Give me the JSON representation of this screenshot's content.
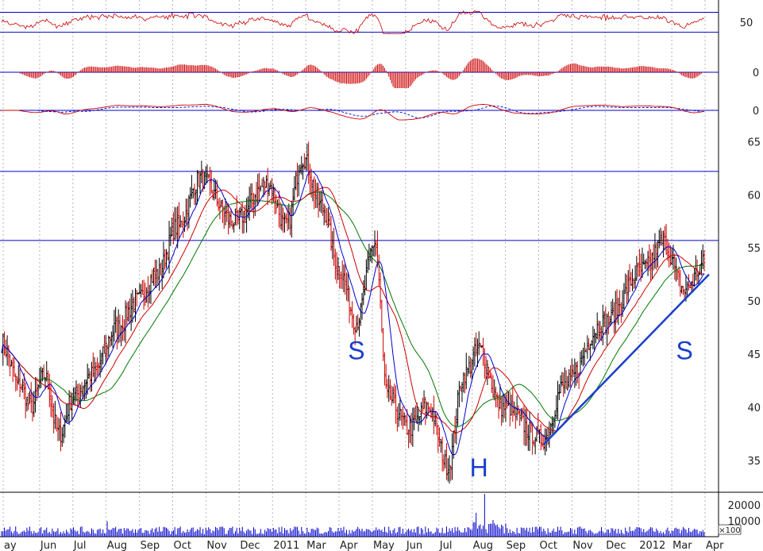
{
  "chart_data": {
    "type": "line",
    "title": "",
    "colors": {
      "price_up": "#000000",
      "price_down": "#cc0000",
      "ma_short": "#0000cc",
      "ma_mid": "#cc0000",
      "ma_long": "#007700",
      "indicator": "#cc0000",
      "signal": "#0000cc",
      "reference_line": "#0000cc",
      "trendline": "#1a3fcc",
      "volume": "#0000cc",
      "pattern_label": "#1a3fcc"
    },
    "x_ticks": [
      "ay",
      "Jun",
      "Jul",
      "Aug",
      "Sep",
      "Oct",
      "Nov",
      "Dec",
      "2011",
      "Mar",
      "Apr",
      "May",
      "Jun",
      "Jul",
      "Aug",
      "Sep",
      "Oct",
      "Nov",
      "Dec",
      "2012",
      "Mar",
      "Apr"
    ],
    "price_panel": {
      "y_ticks": [
        "65",
        "60",
        "55",
        "50",
        "45",
        "40",
        "35"
      ],
      "ylim": [
        32,
        66
      ],
      "horizontal_lines": [
        62.2,
        55.7
      ],
      "key_points": [
        {
          "x": "May 2010",
          "y": 46
        },
        {
          "x": "early Jun 2010",
          "y": 42
        },
        {
          "x": "mid Jun 2010",
          "y": 40
        },
        {
          "x": "late Jun 2010",
          "y": 43
        },
        {
          "x": "early Jul 2010",
          "y": 37.5
        },
        {
          "x": "mid Jul 2010",
          "y": 41
        },
        {
          "x": "Aug 2010",
          "y": 43
        },
        {
          "x": "Sep 2010",
          "y": 47.5
        },
        {
          "x": "Oct 2010",
          "y": 50
        },
        {
          "x": "Nov 2010",
          "y": 52.5
        },
        {
          "x": "early Dec 2010",
          "y": 57
        },
        {
          "x": "mid Dec 2010",
          "y": 61.5
        },
        {
          "x": "Jan 2011",
          "y": 57.5
        },
        {
          "x": "Feb 2011",
          "y": 61
        },
        {
          "x": "Mar 2011",
          "y": 57
        },
        {
          "x": "Apr 2011",
          "y": 63.5
        },
        {
          "x": "May 2011",
          "y": 59
        },
        {
          "x": "Jun 2011",
          "y": 53
        },
        {
          "x": "late Jun 2011",
          "y": 48
        },
        {
          "x": "Jul 2011",
          "y": 55.5
        },
        {
          "x": "early Aug 2011",
          "y": 41
        },
        {
          "x": "mid Aug 2011",
          "y": 38
        },
        {
          "x": "Sep 2011",
          "y": 40
        },
        {
          "x": "late Sep 2011",
          "y": 34.5
        },
        {
          "x": "Oct 2011",
          "y": 43
        },
        {
          "x": "late Oct 2011",
          "y": 45.5
        },
        {
          "x": "Nov 2011",
          "y": 40
        },
        {
          "x": "late Nov 2011",
          "y": 37
        },
        {
          "x": "Dec 2011",
          "y": 42
        },
        {
          "x": "Jan 2012",
          "y": 48
        },
        {
          "x": "Feb 2012",
          "y": 53
        },
        {
          "x": "late Feb 2012",
          "y": 55.5
        },
        {
          "x": "Mar 2012",
          "y": 51
        },
        {
          "x": "Apr 2012",
          "y": 53.5
        }
      ],
      "trendline": {
        "from": {
          "x": "late Nov 2011",
          "y": 36.5
        },
        "to": {
          "x": "Apr 2012",
          "y": 52.5
        }
      },
      "annotations": [
        {
          "text": "S",
          "x": "late Jun 2011",
          "y": 44.5
        },
        {
          "text": "H",
          "x": "late Oct 2011",
          "y": 33.5
        },
        {
          "text": "S",
          "x": "Mar 2012",
          "y": 44.5
        }
      ]
    },
    "indicator_panels": [
      {
        "name": "oscillator",
        "y_ticks": [
          "50"
        ],
        "reference_lines": [
          64,
          38
        ],
        "label_value": 50
      },
      {
        "name": "histogram",
        "y_ticks": [
          "0"
        ],
        "label_value": 0
      },
      {
        "name": "signal-pair",
        "y_ticks": [
          "0"
        ],
        "label_value": 0
      }
    ],
    "volume_panel": {
      "y_ticks": [
        "20000",
        "10000"
      ],
      "multiplier": "×100",
      "ylim": [
        0,
        26000
      ],
      "spikes": [
        {
          "x": "Aug 2010",
          "y": 9000
        },
        {
          "x": "Aug 2011",
          "y": 25000
        },
        {
          "x": "early Aug 2011",
          "y": 14000
        }
      ]
    }
  }
}
